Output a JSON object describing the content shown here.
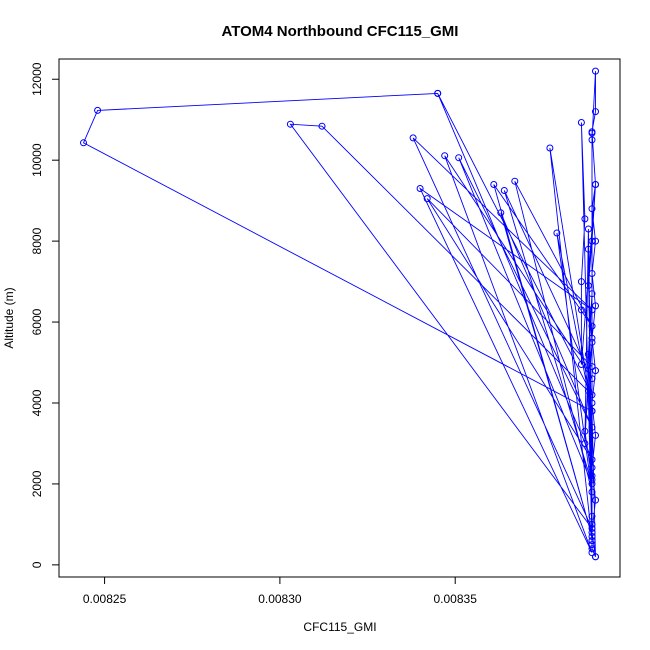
{
  "chart_data": {
    "type": "line",
    "title": "ATOM4 Northbound CFC115_GMI",
    "xlabel": "CFC115_GMI",
    "ylabel": "Altitude (m)",
    "xlim": [
      0.008237,
      0.008397
    ],
    "ylim": [
      -300,
      12500
    ],
    "xticks": [
      0.00825,
      0.0083,
      0.00835
    ],
    "xtick_labels": [
      "0.00825",
      "0.00830",
      "0.00835"
    ],
    "yticks": [
      0,
      2000,
      4000,
      6000,
      8000,
      10000,
      12000
    ],
    "ytick_labels": [
      "0",
      "2000",
      "4000",
      "6000",
      "8000",
      "10000",
      "12000"
    ],
    "grid": false,
    "series": [
      {
        "color": "#0000ff",
        "points": [
          [
            0.00839,
            200
          ],
          [
            0.008389,
            800
          ],
          [
            0.00839,
            1600
          ],
          [
            0.008389,
            2400
          ],
          [
            0.00839,
            3200
          ],
          [
            0.008389,
            4000
          ],
          [
            0.00839,
            4800
          ],
          [
            0.008389,
            5600
          ],
          [
            0.00839,
            6400
          ],
          [
            0.008389,
            7200
          ],
          [
            0.00839,
            8000
          ],
          [
            0.008389,
            8800
          ],
          [
            0.00839,
            9400
          ],
          [
            0.008386,
            4950
          ],
          [
            0.008386,
            6300
          ],
          [
            0.008386,
            7000
          ],
          [
            0.008387,
            8550
          ],
          [
            0.008386,
            10930
          ],
          [
            0.008389,
            600
          ],
          [
            0.008377,
            10300
          ],
          [
            0.008389,
            3800
          ],
          [
            0.008379,
            8200
          ],
          [
            0.008389,
            1800
          ],
          [
            0.008367,
            9480
          ],
          [
            0.008389,
            5900
          ],
          [
            0.008361,
            9400
          ],
          [
            0.008389,
            700
          ],
          [
            0.008363,
            8700
          ],
          [
            0.008389,
            3400
          ],
          [
            0.008351,
            10060
          ],
          [
            0.008389,
            2000
          ],
          [
            0.008364,
            9250
          ],
          [
            0.008389,
            4600
          ],
          [
            0.008347,
            10110
          ],
          [
            0.008389,
            300
          ],
          [
            0.00834,
            9300
          ],
          [
            0.008389,
            6300
          ],
          [
            0.008338,
            10550
          ],
          [
            0.008389,
            900
          ],
          [
            0.008303,
            10890
          ],
          [
            0.008312,
            10840
          ],
          [
            0.008389,
            4200
          ],
          [
            0.008345,
            11650
          ],
          [
            0.008389,
            2600
          ],
          [
            0.008342,
            9050
          ],
          [
            0.008389,
            4900
          ],
          [
            0.008389,
            500
          ],
          [
            0.008388,
            7800
          ],
          [
            0.008389,
            1200
          ],
          [
            0.008388,
            5200
          ],
          [
            0.008389,
            6700
          ],
          [
            0.008387,
            3000
          ],
          [
            0.008388,
            8300
          ],
          [
            0.008389,
            2200
          ],
          [
            0.008389,
            10670
          ],
          [
            0.008389,
            10500
          ],
          [
            0.00839,
            12200
          ],
          [
            0.00839,
            11200
          ],
          [
            0.008389,
            10700
          ],
          [
            0.00839,
            9400
          ],
          [
            0.008389,
            8000
          ],
          [
            0.008388,
            6900
          ],
          [
            0.008389,
            5500
          ],
          [
            0.008388,
            4300
          ],
          [
            0.008387,
            3300
          ],
          [
            0.008389,
            2100
          ],
          [
            0.008389,
            1000
          ],
          [
            0.008389,
            400
          ],
          [
            0.00839,
            200
          ],
          [
            0.008389,
            3800
          ],
          [
            0.008244,
            10430
          ],
          [
            0.008248,
            11230
          ],
          [
            0.008345,
            11650
          ]
        ]
      }
    ]
  }
}
